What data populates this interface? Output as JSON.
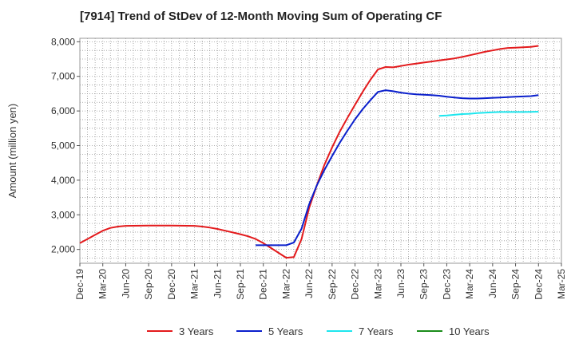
{
  "chart_data": {
    "type": "line",
    "title": "[7914]  Trend of StDev of 12-Month Moving Sum of Operating CF",
    "ylabel": "Amount (million yen)",
    "xlabel": "",
    "ylim": [
      1600,
      8100
    ],
    "y_ticks": [
      2000,
      3000,
      4000,
      5000,
      6000,
      7000,
      8000
    ],
    "y_tick_labels": [
      "2,000",
      "3,000",
      "4,000",
      "5,000",
      "6,000",
      "7,000",
      "8,000"
    ],
    "x_ticks": [
      "Dec-19",
      "Mar-20",
      "Jun-20",
      "Sep-20",
      "Dec-20",
      "Mar-21",
      "Jun-21",
      "Sep-21",
      "Dec-21",
      "Mar-22",
      "Jun-22",
      "Sep-22",
      "Dec-22",
      "Mar-23",
      "Jun-23",
      "Sep-23",
      "Dec-23",
      "Mar-24",
      "Jun-24",
      "Sep-24",
      "Dec-24",
      "Mar-25"
    ],
    "grid": true,
    "legend_position": "bottom",
    "series": [
      {
        "name": "3 Years",
        "color": "#e31a1c",
        "points": [
          [
            "Dec-19",
            2180
          ],
          [
            "Jan-20",
            2300
          ],
          [
            "Feb-20",
            2420
          ],
          [
            "Mar-20",
            2540
          ],
          [
            "Apr-20",
            2620
          ],
          [
            "May-20",
            2660
          ],
          [
            "Jun-20",
            2680
          ],
          [
            "Sep-20",
            2690
          ],
          [
            "Dec-20",
            2690
          ],
          [
            "Mar-21",
            2680
          ],
          [
            "Apr-21",
            2660
          ],
          [
            "May-21",
            2630
          ],
          [
            "Jun-21",
            2590
          ],
          [
            "Jul-21",
            2540
          ],
          [
            "Aug-21",
            2490
          ],
          [
            "Sep-21",
            2440
          ],
          [
            "Oct-21",
            2380
          ],
          [
            "Nov-21",
            2300
          ],
          [
            "Dec-21",
            2180
          ],
          [
            "Jan-22",
            2040
          ],
          [
            "Feb-22",
            1900
          ],
          [
            "Mar-22",
            1760
          ],
          [
            "Apr-22",
            1780
          ],
          [
            "May-22",
            2300
          ],
          [
            "Jun-22",
            3200
          ],
          [
            "Jul-22",
            3850
          ],
          [
            "Aug-22",
            4450
          ],
          [
            "Sep-22",
            4950
          ],
          [
            "Oct-22",
            5400
          ],
          [
            "Nov-22",
            5800
          ],
          [
            "Dec-22",
            6180
          ],
          [
            "Jan-23",
            6550
          ],
          [
            "Feb-23",
            6900
          ],
          [
            "Mar-23",
            7200
          ],
          [
            "Apr-23",
            7270
          ],
          [
            "May-23",
            7260
          ],
          [
            "Jun-23",
            7300
          ],
          [
            "Jul-23",
            7340
          ],
          [
            "Aug-23",
            7370
          ],
          [
            "Sep-23",
            7400
          ],
          [
            "Oct-23",
            7430
          ],
          [
            "Nov-23",
            7460
          ],
          [
            "Dec-23",
            7490
          ],
          [
            "Jan-24",
            7520
          ],
          [
            "Feb-24",
            7560
          ],
          [
            "Mar-24",
            7610
          ],
          [
            "Apr-24",
            7660
          ],
          [
            "May-24",
            7710
          ],
          [
            "Jun-24",
            7750
          ],
          [
            "Jul-24",
            7790
          ],
          [
            "Aug-24",
            7820
          ],
          [
            "Sep-24",
            7830
          ],
          [
            "Oct-24",
            7840
          ],
          [
            "Nov-24",
            7850
          ],
          [
            "Dec-24",
            7880
          ]
        ]
      },
      {
        "name": "5 Years",
        "color": "#0a1fcc",
        "points": [
          [
            "Nov-21",
            2120
          ],
          [
            "Dec-21",
            2120
          ],
          [
            "Jan-22",
            2120
          ],
          [
            "Feb-22",
            2120
          ],
          [
            "Mar-22",
            2120
          ],
          [
            "Apr-22",
            2200
          ],
          [
            "May-22",
            2600
          ],
          [
            "Jun-22",
            3300
          ],
          [
            "Jul-22",
            3850
          ],
          [
            "Aug-22",
            4300
          ],
          [
            "Sep-22",
            4700
          ],
          [
            "Oct-22",
            5080
          ],
          [
            "Nov-22",
            5430
          ],
          [
            "Dec-22",
            5760
          ],
          [
            "Jan-23",
            6050
          ],
          [
            "Feb-23",
            6310
          ],
          [
            "Mar-23",
            6550
          ],
          [
            "Apr-23",
            6600
          ],
          [
            "May-23",
            6570
          ],
          [
            "Jun-23",
            6530
          ],
          [
            "Jul-23",
            6500
          ],
          [
            "Aug-23",
            6480
          ],
          [
            "Sep-23",
            6470
          ],
          [
            "Oct-23",
            6460
          ],
          [
            "Nov-23",
            6440
          ],
          [
            "Dec-23",
            6410
          ],
          [
            "Jan-24",
            6390
          ],
          [
            "Feb-24",
            6370
          ],
          [
            "Mar-24",
            6360
          ],
          [
            "Apr-24",
            6360
          ],
          [
            "May-24",
            6370
          ],
          [
            "Jun-24",
            6380
          ],
          [
            "Jul-24",
            6390
          ],
          [
            "Aug-24",
            6400
          ],
          [
            "Sep-24",
            6410
          ],
          [
            "Oct-24",
            6420
          ],
          [
            "Nov-24",
            6430
          ],
          [
            "Dec-24",
            6460
          ]
        ]
      },
      {
        "name": "7 Years",
        "color": "#1ee6ee",
        "points": [
          [
            "Nov-23",
            5860
          ],
          [
            "Dec-23",
            5870
          ],
          [
            "Jan-24",
            5890
          ],
          [
            "Feb-24",
            5910
          ],
          [
            "Mar-24",
            5920
          ],
          [
            "Apr-24",
            5940
          ],
          [
            "May-24",
            5950
          ],
          [
            "Jun-24",
            5960
          ],
          [
            "Jul-24",
            5970
          ],
          [
            "Aug-24",
            5970
          ],
          [
            "Sep-24",
            5970
          ],
          [
            "Oct-24",
            5970
          ],
          [
            "Nov-24",
            5975
          ],
          [
            "Dec-24",
            5980
          ]
        ]
      },
      {
        "name": "10 Years",
        "color": "#1a8c1a",
        "points": []
      }
    ]
  }
}
